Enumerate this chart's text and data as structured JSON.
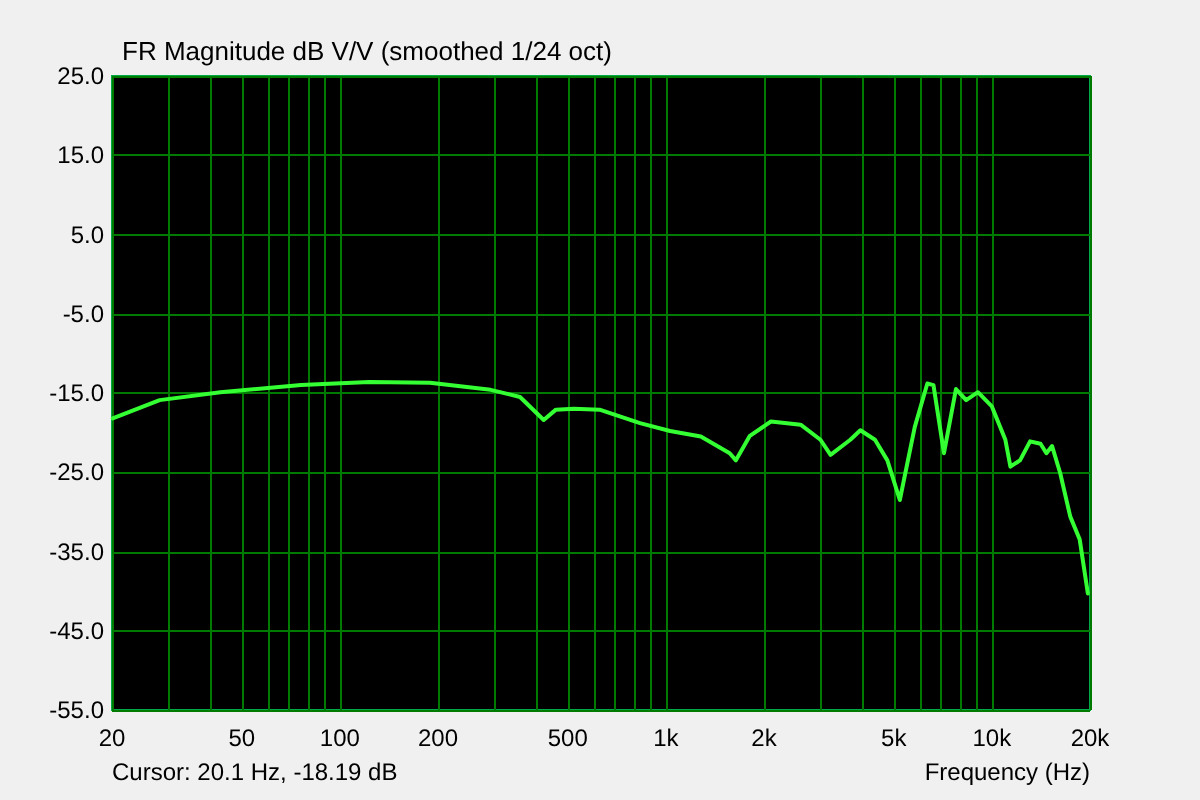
{
  "chart_data": {
    "type": "line",
    "title": "FR Magnitude dB V/V (smoothed 1/24 oct)",
    "xlabel": "Frequency (Hz)",
    "annotations": [
      "Cursor: 20.1 Hz, -18.19 dB"
    ],
    "log": "x",
    "grid": true,
    "marker": "none",
    "line_style": "solid",
    "xlim": [
      20,
      20000
    ],
    "xticks": [
      20,
      50,
      100,
      200,
      500,
      {
        "value": 1000,
        "label": "1k"
      },
      {
        "value": 2000,
        "label": "2k"
      },
      {
        "value": 5000,
        "label": "5k"
      },
      {
        "value": 10000,
        "label": "10k"
      },
      {
        "value": 20000,
        "label": "20k"
      }
    ],
    "ylim": [
      -55,
      25
    ],
    "yticks": [
      {
        "value": -55,
        "label": "-55.0"
      },
      {
        "value": -45,
        "label": "-45.0"
      },
      {
        "value": -35,
        "label": "-35.0"
      },
      {
        "value": -25,
        "label": "-25.0"
      },
      {
        "value": -15,
        "label": "-15.0"
      },
      {
        "value": -5,
        "label": "-5.0"
      },
      {
        "value": 5,
        "label": "5.0"
      },
      {
        "value": 15,
        "label": "15.0"
      },
      {
        "value": 25,
        "label": "25.0"
      }
    ],
    "series": [
      {
        "color": "#33ff33",
        "x": [
          20.1,
          28,
          43,
          76,
          123,
          189,
          290,
          357,
          422,
          460,
          522,
          626,
          833,
          1030,
          1280,
          1570,
          1640,
          1810,
          2100,
          2590,
          2980,
          3200,
          3680,
          3950,
          4380,
          4780,
          5220,
          5800,
          6340,
          6620,
          7130,
          7760,
          8340,
          9060,
          10000,
          11000,
          11400,
          12200,
          13100,
          14100,
          14700,
          15300,
          16200,
          17400,
          18600,
          19700
        ],
        "values": [
          -18.2,
          -15.9,
          -14.9,
          -14.0,
          -13.6,
          -13.7,
          -14.6,
          -15.5,
          -18.4,
          -17.1,
          -17.0,
          -17.1,
          -18.8,
          -19.8,
          -20.5,
          -22.6,
          -23.5,
          -20.4,
          -18.6,
          -19.0,
          -20.9,
          -22.8,
          -20.9,
          -19.7,
          -20.9,
          -23.5,
          -28.5,
          -19.3,
          -13.8,
          -14.0,
          -22.6,
          -14.5,
          -15.9,
          -14.9,
          -16.7,
          -20.9,
          -24.3,
          -23.5,
          -21.1,
          -21.4,
          -22.6,
          -21.7,
          -25.1,
          -30.6,
          -33.5,
          -40.3
        ]
      }
    ]
  }
}
